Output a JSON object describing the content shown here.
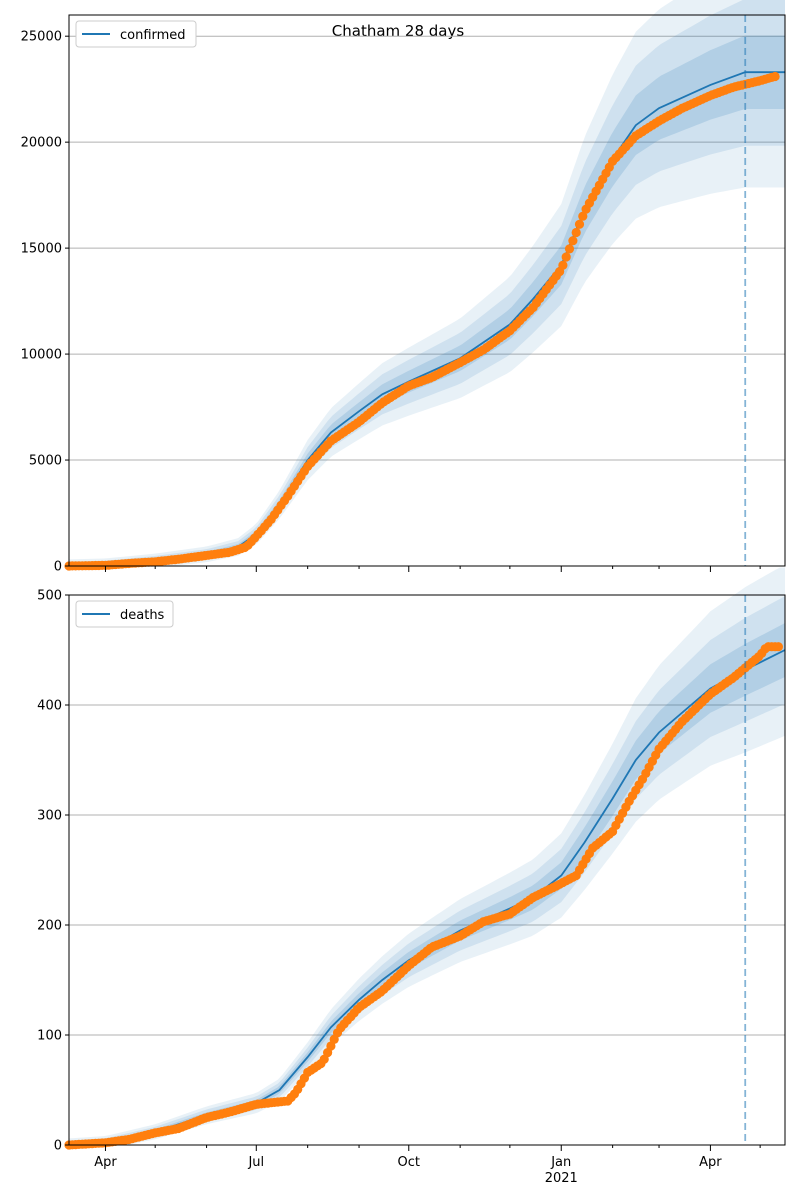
{
  "figure_title": "Chatham 28 days",
  "colors": {
    "model": "#1f77b4",
    "observed": "#ff7f0e",
    "band": "#1f77b4",
    "grid": "#b0b0b0",
    "forecast_line": "#1f77b4"
  },
  "x_axis": {
    "ticks": [
      {
        "date": "2020-04-01",
        "label": "Apr"
      },
      {
        "date": "2020-07-01",
        "label": "Jul"
      },
      {
        "date": "2020-10-01",
        "label": "Oct"
      },
      {
        "date": "2021-01-01",
        "label": "Jan"
      },
      {
        "date": "2021-04-01",
        "label": "Apr"
      }
    ],
    "year_label": "2021",
    "range": [
      "2020-03-10",
      "2021-05-16"
    ]
  },
  "forecast_date": "2021-04-22",
  "chart_data": [
    {
      "type": "line",
      "legend": {
        "label": "confirmed",
        "position": "top-left"
      },
      "ylim": [
        0,
        26000
      ],
      "yticks": [
        0,
        5000,
        10000,
        15000,
        20000,
        25000
      ],
      "grid": "horizontal",
      "series": [
        {
          "name": "confirmed",
          "kind": "model",
          "points": [
            [
              "2020-03-10",
              0
            ],
            [
              "2020-04-01",
              40
            ],
            [
              "2020-05-01",
              250
            ],
            [
              "2020-06-01",
              550
            ],
            [
              "2020-06-20",
              900
            ],
            [
              "2020-07-01",
              1500
            ],
            [
              "2020-07-15",
              2900
            ],
            [
              "2020-08-01",
              5000
            ],
            [
              "2020-08-15",
              6300
            ],
            [
              "2020-09-01",
              7300
            ],
            [
              "2020-09-15",
              8100
            ],
            [
              "2020-10-01",
              8700
            ],
            [
              "2020-11-01",
              9800
            ],
            [
              "2020-12-01",
              11400
            ],
            [
              "2020-12-15",
              12600
            ],
            [
              "2021-01-01",
              14200
            ],
            [
              "2021-01-15",
              16800
            ],
            [
              "2021-02-01",
              19200
            ],
            [
              "2021-02-15",
              20800
            ],
            [
              "2021-03-01",
              21600
            ],
            [
              "2021-04-01",
              22700
            ],
            [
              "2021-04-22",
              23300
            ],
            [
              "2021-05-16",
              23300
            ]
          ]
        },
        {
          "name": "",
          "kind": "observed",
          "points": [
            [
              "2020-03-10",
              0
            ],
            [
              "2020-04-01",
              30
            ],
            [
              "2020-04-15",
              120
            ],
            [
              "2020-05-01",
              200
            ],
            [
              "2020-05-15",
              320
            ],
            [
              "2020-06-01",
              500
            ],
            [
              "2020-06-15",
              650
            ],
            [
              "2020-06-25",
              900
            ],
            [
              "2020-07-01",
              1400
            ],
            [
              "2020-07-10",
              2200
            ],
            [
              "2020-07-20",
              3300
            ],
            [
              "2020-08-01",
              4700
            ],
            [
              "2020-08-15",
              5900
            ],
            [
              "2020-09-01",
              6800
            ],
            [
              "2020-09-15",
              7700
            ],
            [
              "2020-10-01",
              8500
            ],
            [
              "2020-10-15",
              8900
            ],
            [
              "2020-11-01",
              9600
            ],
            [
              "2020-11-15",
              10200
            ],
            [
              "2020-12-01",
              11100
            ],
            [
              "2020-12-15",
              12200
            ],
            [
              "2021-01-01",
              14000
            ],
            [
              "2021-01-15",
              16700
            ],
            [
              "2021-02-01",
              19100
            ],
            [
              "2021-02-15",
              20300
            ],
            [
              "2021-03-01",
              21000
            ],
            [
              "2021-03-15",
              21600
            ],
            [
              "2021-04-01",
              22200
            ],
            [
              "2021-04-15",
              22600
            ],
            [
              "2021-05-01",
              22900
            ],
            [
              "2021-05-10",
              23100
            ]
          ]
        }
      ],
      "uncertainty_bands": [
        {
          "level": "outer",
          "rel_width_at_forecast": 0.22
        },
        {
          "level": "middle",
          "rel_width_at_forecast": 0.14
        },
        {
          "level": "inner",
          "rel_width_at_forecast": 0.07
        }
      ]
    },
    {
      "type": "line",
      "legend": {
        "label": "deaths",
        "position": "top-left"
      },
      "ylim": [
        0,
        500
      ],
      "yticks": [
        0,
        100,
        200,
        300,
        400,
        500
      ],
      "grid": "horizontal",
      "series": [
        {
          "name": "deaths",
          "kind": "model",
          "points": [
            [
              "2020-03-10",
              0
            ],
            [
              "2020-04-01",
              2
            ],
            [
              "2020-05-01",
              12
            ],
            [
              "2020-06-01",
              27
            ],
            [
              "2020-07-01",
              38
            ],
            [
              "2020-07-15",
              50
            ],
            [
              "2020-08-01",
              80
            ],
            [
              "2020-08-15",
              107
            ],
            [
              "2020-09-01",
              132
            ],
            [
              "2020-09-15",
              150
            ],
            [
              "2020-10-01",
              168
            ],
            [
              "2020-11-01",
              195
            ],
            [
              "2020-12-01",
              215
            ],
            [
              "2020-12-15",
              225
            ],
            [
              "2021-01-01",
              245
            ],
            [
              "2021-01-15",
              275
            ],
            [
              "2021-02-01",
              315
            ],
            [
              "2021-02-15",
              350
            ],
            [
              "2021-03-01",
              375
            ],
            [
              "2021-04-01",
              415
            ],
            [
              "2021-04-22",
              432
            ],
            [
              "2021-05-16",
              450
            ]
          ]
        },
        {
          "name": "",
          "kind": "observed",
          "points": [
            [
              "2020-03-10",
              0
            ],
            [
              "2020-04-01",
              2
            ],
            [
              "2020-04-15",
              5
            ],
            [
              "2020-05-01",
              11
            ],
            [
              "2020-05-15",
              15
            ],
            [
              "2020-06-01",
              25
            ],
            [
              "2020-06-15",
              30
            ],
            [
              "2020-07-01",
              37
            ],
            [
              "2020-07-20",
              40
            ],
            [
              "2020-07-25",
              48
            ],
            [
              "2020-08-01",
              66
            ],
            [
              "2020-08-10",
              75
            ],
            [
              "2020-08-20",
              105
            ],
            [
              "2020-09-01",
              125
            ],
            [
              "2020-09-15",
              140
            ],
            [
              "2020-10-01",
              163
            ],
            [
              "2020-10-15",
              180
            ],
            [
              "2020-11-01",
              190
            ],
            [
              "2020-11-15",
              203
            ],
            [
              "2020-12-01",
              210
            ],
            [
              "2020-12-15",
              225
            ],
            [
              "2020-12-31",
              237
            ],
            [
              "2021-01-10",
              245
            ],
            [
              "2021-01-20",
              270
            ],
            [
              "2021-02-01",
              285
            ],
            [
              "2021-02-10",
              310
            ],
            [
              "2021-02-20",
              335
            ],
            [
              "2021-03-01",
              360
            ],
            [
              "2021-03-15",
              385
            ],
            [
              "2021-04-01",
              410
            ],
            [
              "2021-04-15",
              425
            ],
            [
              "2021-05-01",
              445
            ],
            [
              "2021-05-05",
              453
            ],
            [
              "2021-05-12",
              453
            ]
          ]
        }
      ],
      "uncertainty_bands": [
        {
          "level": "outer",
          "rel_width_at_forecast": 0.16
        },
        {
          "level": "middle",
          "rel_width_at_forecast": 0.1
        },
        {
          "level": "inner",
          "rel_width_at_forecast": 0.05
        }
      ]
    }
  ]
}
